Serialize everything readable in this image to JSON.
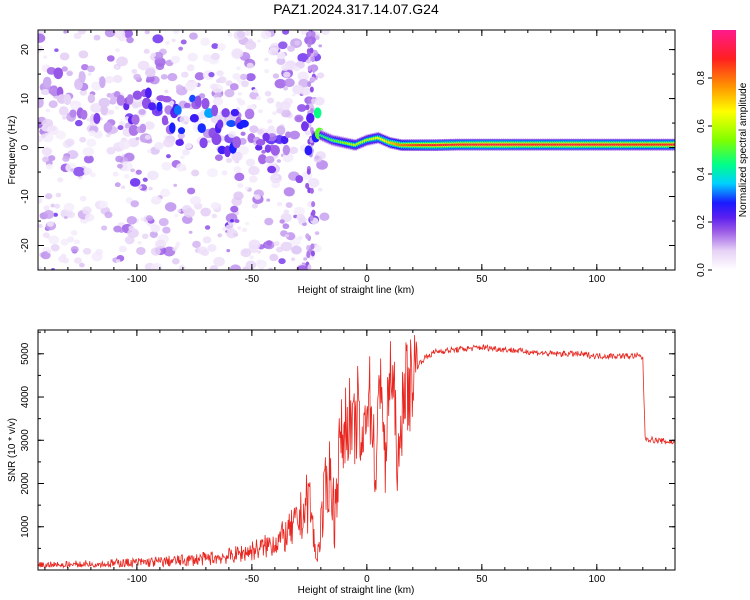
{
  "title": "PAZ1.2024.317.14.07.G24",
  "chart_data": [
    {
      "type": "heatmap",
      "xlabel": "Height of straight line (km)",
      "ylabel": "Frequency (Hz)",
      "xlim": [
        -143,
        134
      ],
      "ylim": [
        -25,
        24
      ],
      "x_ticks": [
        -100,
        -50,
        0,
        50,
        100
      ],
      "y_ticks": [
        -20,
        -10,
        0,
        10,
        20
      ],
      "colorbar": {
        "label": "Normalized spectral amplitude",
        "range": [
          0,
          1
        ],
        "ticks": [
          0,
          0.2,
          0.4,
          0.6,
          0.8
        ],
        "tick_labels": [
          "0.0",
          "0.2",
          "0.4",
          "0.6",
          "0.8"
        ],
        "colors": [
          "#ffffff",
          "#e6d2f6",
          "#9c5ce6",
          "#5b1ff0",
          "#1a1aff",
          "#00d0ff",
          "#00ff88",
          "#7fff00",
          "#ffff00",
          "#ff9900",
          "#ff2020",
          "#ff1a8c"
        ]
      },
      "ridge": {
        "x": [
          -143,
          -120,
          -100,
          -90,
          -80,
          -70,
          -60,
          -50,
          -40,
          -30,
          -25,
          -20,
          -15,
          -10,
          -5,
          0,
          5,
          10,
          15,
          20,
          30,
          40,
          50,
          60,
          70,
          80,
          90,
          100,
          110,
          120,
          134
        ],
        "frequency": [
          12,
          10,
          7,
          6,
          6,
          5,
          4,
          3,
          0,
          -3,
          1,
          2.5,
          1.5,
          1,
          0.5,
          1.5,
          2,
          1,
          0.5,
          0.5,
          0.5,
          0.6,
          0.6,
          0.6,
          0.6,
          0.6,
          0.6,
          0.6,
          0.6,
          0.6,
          0.6
        ],
        "amplitude": [
          0.12,
          0.14,
          0.18,
          0.22,
          0.3,
          0.3,
          0.26,
          0.22,
          0.2,
          0.18,
          0.25,
          0.45,
          0.5,
          0.55,
          0.6,
          0.6,
          0.65,
          0.7,
          0.8,
          0.85,
          0.9,
          0.9,
          0.92,
          0.92,
          0.9,
          0.9,
          0.92,
          0.9,
          0.9,
          0.88,
          0.9
        ]
      }
    },
    {
      "type": "line",
      "xlabel": "Height of straight line (km)",
      "ylabel": "SNR (10 * v/v)",
      "xlim": [
        -143,
        134
      ],
      "ylim": [
        0,
        5550
      ],
      "x_ticks": [
        -100,
        -50,
        0,
        50,
        100
      ],
      "y_ticks": [
        1000,
        2000,
        3000,
        4000,
        5000
      ],
      "color": "#e8261f",
      "series": [
        {
          "x": [
            -143,
            -130,
            -120,
            -110,
            -100,
            -90,
            -80,
            -70,
            -60,
            -55,
            -50,
            -45,
            -40,
            -35,
            -30,
            -27,
            -25,
            -22,
            -20,
            -18,
            -16,
            -14,
            -12,
            -10,
            -8,
            -6,
            -4,
            -2,
            0,
            2,
            4,
            6,
            8,
            10,
            12,
            14,
            16,
            18,
            20,
            25,
            30,
            40,
            50,
            60,
            70,
            80,
            90,
            100,
            110,
            118,
            120,
            121,
            125,
            134
          ],
          "y": [
            100,
            120,
            140,
            150,
            170,
            190,
            220,
            260,
            320,
            380,
            450,
            520,
            650,
            800,
            1100,
            1400,
            1700,
            200,
            900,
            1800,
            2300,
            1200,
            2800,
            3200,
            3600,
            3000,
            3700,
            2500,
            4200,
            3800,
            2000,
            5000,
            2200,
            4800,
            3800,
            2100,
            4500,
            4100,
            4600,
            4900,
            5050,
            5100,
            5150,
            5100,
            5050,
            5000,
            5000,
            4950,
            4950,
            4950,
            4900,
            3050,
            3000,
            2950
          ]
        }
      ]
    }
  ]
}
